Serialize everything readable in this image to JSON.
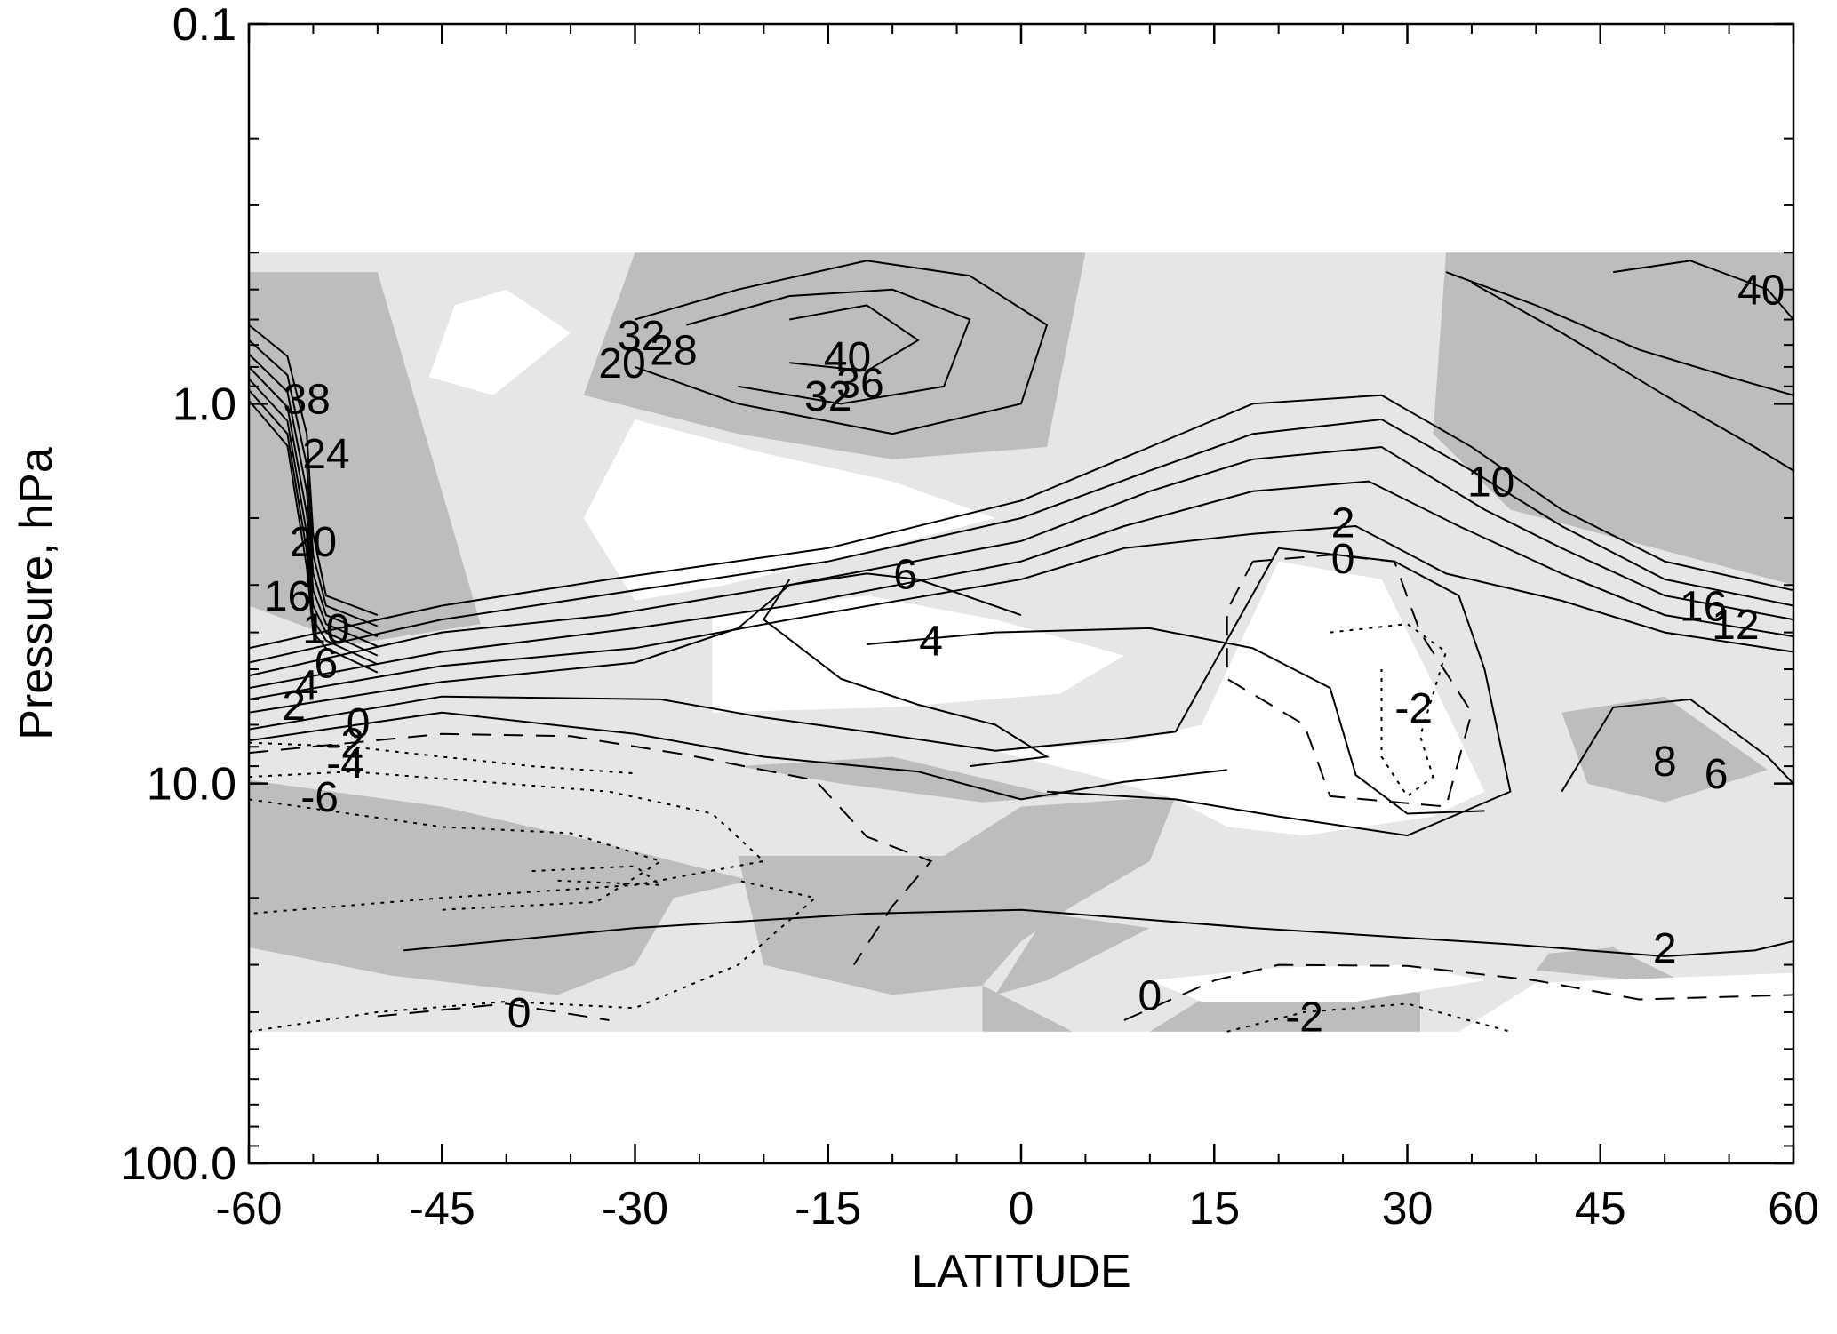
{
  "chart_data": {
    "type": "contour",
    "xlabel": "LATITUDE",
    "ylabel": "Pressure, hPa",
    "xlim": [
      -60,
      60
    ],
    "ylim": [
      100.0,
      0.1
    ],
    "y_scale": "log",
    "x_ticks": [
      -60,
      -45,
      -30,
      -15,
      0,
      15,
      30,
      45,
      60
    ],
    "x_tick_labels": [
      "-60",
      "-45",
      "-30",
      "-15",
      "0",
      "15",
      "30",
      "45",
      "60"
    ],
    "y_ticks": [
      0.1,
      1.0,
      10.0,
      100.0
    ],
    "y_tick_labels": [
      "0.1",
      "1.0",
      "10.0",
      "100.0"
    ],
    "data_range": {
      "lat": [
        -60,
        60
      ],
      "pressure": [
        0.4,
        45
      ]
    },
    "shading": {
      "light_color": "#e6e6e6",
      "dark_color": "#bdbdbd",
      "background": "#ffffff"
    },
    "contour_labels": [
      {
        "text": "40",
        "lat": 57.5,
        "p": 0.5
      },
      {
        "text": "16",
        "lat": 53.0,
        "p": 3.4
      },
      {
        "text": "12",
        "lat": 55.5,
        "p": 3.8
      },
      {
        "text": "8",
        "lat": 50.0,
        "p": 8.7
      },
      {
        "text": "6",
        "lat": 54.0,
        "p": 9.4
      },
      {
        "text": "2",
        "lat": 50.0,
        "p": 27.0
      },
      {
        "text": "2",
        "lat": 25.0,
        "p": 2.05
      },
      {
        "text": "0",
        "lat": 25.0,
        "p": 2.55
      },
      {
        "text": "-2",
        "lat": 30.5,
        "p": 6.3
      },
      {
        "text": "10",
        "lat": 36.5,
        "p": 1.6
      },
      {
        "text": "-2",
        "lat": 22.0,
        "p": 41.0
      },
      {
        "text": "0",
        "lat": 10.0,
        "p": 36.0
      },
      {
        "text": "6",
        "lat": -9.0,
        "p": 2.8
      },
      {
        "text": "4",
        "lat": -7.0,
        "p": 4.2
      },
      {
        "text": "20",
        "lat": -31.0,
        "p": 0.78
      },
      {
        "text": "28",
        "lat": -27.0,
        "p": 0.72
      },
      {
        "text": "32",
        "lat": -29.5,
        "p": 0.66
      },
      {
        "text": "40",
        "lat": -13.5,
        "p": 0.75
      },
      {
        "text": "36",
        "lat": -12.5,
        "p": 0.88
      },
      {
        "text": "32",
        "lat": -15.0,
        "p": 0.95
      },
      {
        "text": "38",
        "lat": -55.5,
        "p": 0.97
      },
      {
        "text": "24",
        "lat": -54.0,
        "p": 1.35
      },
      {
        "text": "20",
        "lat": -55.0,
        "p": 2.3
      },
      {
        "text": "16",
        "lat": -57.0,
        "p": 3.2
      },
      {
        "text": "10",
        "lat": -54.0,
        "p": 3.9
      },
      {
        "text": "6",
        "lat": -54.0,
        "p": 4.8
      },
      {
        "text": "4",
        "lat": -55.5,
        "p": 5.5
      },
      {
        "text": "2",
        "lat": -56.5,
        "p": 6.2
      },
      {
        "text": "0",
        "lat": -51.5,
        "p": 6.9
      },
      {
        "text": "-2",
        "lat": -52.5,
        "p": 7.8
      },
      {
        "text": "-4",
        "lat": -52.5,
        "p": 8.8
      },
      {
        "text": "-6",
        "lat": -54.5,
        "p": 10.8
      },
      {
        "text": "0",
        "lat": -39.0,
        "p": 40.0
      }
    ]
  }
}
